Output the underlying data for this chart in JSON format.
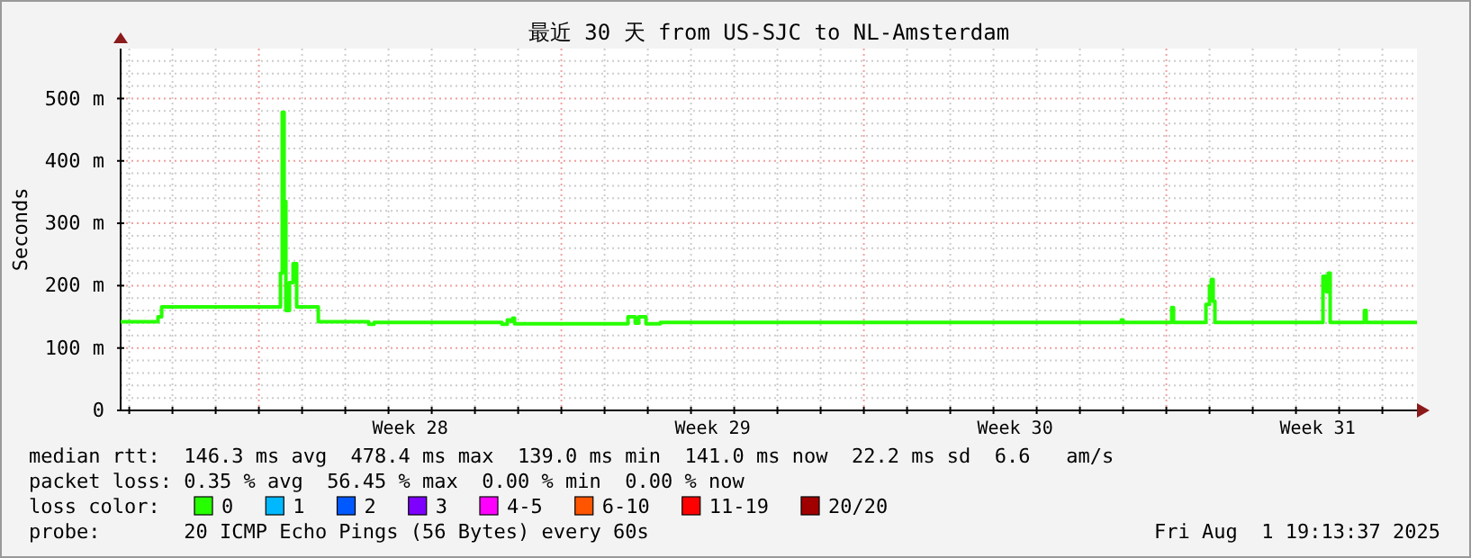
{
  "chart_data": {
    "type": "line",
    "title": "最近 30 天 from US-SJC to NL-Amsterdam",
    "ylabel": "Seconds",
    "xlim": [
      "2025-07-02T19:13",
      "2025-08-01T19:13"
    ],
    "ylim": [
      0,
      580
    ],
    "yticks": [
      0,
      {
        "value": 20,
        "label": null
      },
      {
        "value": 40,
        "label": null
      },
      {
        "value": 60,
        "label": null
      },
      {
        "value": 80,
        "label": null
      },
      {
        "value": 100,
        "label": "100 m"
      },
      {
        "value": 120,
        "label": null
      },
      {
        "value": 140,
        "label": null
      },
      {
        "value": 160,
        "label": null
      },
      {
        "value": 180,
        "label": null
      },
      {
        "value": 200,
        "label": "200 m"
      },
      {
        "value": 220,
        "label": null
      },
      {
        "value": 240,
        "label": null
      },
      {
        "value": 260,
        "label": null
      },
      {
        "value": 280,
        "label": null
      },
      {
        "value": 300,
        "label": "300 m"
      },
      {
        "value": 320,
        "label": null
      },
      {
        "value": 340,
        "label": null
      },
      {
        "value": 360,
        "label": null
      },
      {
        "value": 380,
        "label": null
      },
      {
        "value": 400,
        "label": "400 m"
      },
      {
        "value": 420,
        "label": null
      },
      {
        "value": 440,
        "label": null
      },
      {
        "value": 460,
        "label": null
      },
      {
        "value": 480,
        "label": null
      },
      {
        "value": 500,
        "label": "500 m"
      },
      {
        "value": 520,
        "label": null
      },
      {
        "value": 540,
        "label": null
      },
      {
        "value": 560,
        "label": null
      }
    ],
    "xticks": [
      {
        "value": "2025-07-03",
        "label": null
      },
      {
        "value": "2025-07-04",
        "label": null
      },
      {
        "value": "2025-07-05",
        "label": null
      },
      {
        "value": "2025-07-06",
        "label": null
      },
      {
        "value": "2025-07-07",
        "label": null
      },
      {
        "value": "2025-07-08",
        "label": null
      },
      {
        "value": "2025-07-09",
        "label": null
      },
      {
        "value": "2025-07-09T12:00",
        "label": "Week 28"
      },
      {
        "value": "2025-07-10",
        "label": null
      },
      {
        "value": "2025-07-11",
        "label": null
      },
      {
        "value": "2025-07-12",
        "label": null
      },
      {
        "value": "2025-07-13",
        "label": null
      },
      {
        "value": "2025-07-14",
        "label": null
      },
      {
        "value": "2025-07-15",
        "label": null
      },
      {
        "value": "2025-07-16",
        "label": null
      },
      {
        "value": "2025-07-16T12:00",
        "label": "Week 29"
      },
      {
        "value": "2025-07-17",
        "label": null
      },
      {
        "value": "2025-07-18",
        "label": null
      },
      {
        "value": "2025-07-19",
        "label": null
      },
      {
        "value": "2025-07-20",
        "label": null
      },
      {
        "value": "2025-07-21",
        "label": null
      },
      {
        "value": "2025-07-22",
        "label": null
      },
      {
        "value": "2025-07-23",
        "label": null
      },
      {
        "value": "2025-07-23T12:00",
        "label": "Week 30"
      },
      {
        "value": "2025-07-24",
        "label": null
      },
      {
        "value": "2025-07-25",
        "label": null
      },
      {
        "value": "2025-07-26",
        "label": null
      },
      {
        "value": "2025-07-27",
        "label": null
      },
      {
        "value": "2025-07-28",
        "label": null
      },
      {
        "value": "2025-07-29",
        "label": null
      },
      {
        "value": "2025-07-30",
        "label": null
      },
      {
        "value": "2025-07-30T12:00",
        "label": "Week 31"
      },
      {
        "value": "2025-07-31",
        "label": null
      },
      {
        "value": "2025-08-01",
        "label": null
      }
    ],
    "grid": true,
    "legend": "bottom",
    "legend_title": "loss color:",
    "line_style": "solid",
    "marker": "none",
    "series": [
      {
        "name": "0",
        "color": "#26ff00",
        "x": [
          "2025-07-02T19:13",
          "2025-07-03T15:00",
          "2025-07-03T16:00",
          "2025-07-03T18:00",
          "2025-07-06T11:00",
          "2025-07-06T12:00",
          "2025-07-06T13:00",
          "2025-07-06T14:00",
          "2025-07-06T15:00",
          "2025-07-06T17:00",
          "2025-07-06T19:00",
          "2025-07-06T21:00",
          "2025-07-07T08:00",
          "2025-07-07T09:00",
          "2025-07-08T12:00",
          "2025-07-08T13:00",
          "2025-07-08T16:00",
          "2025-07-11T14:00",
          "2025-07-11T15:00",
          "2025-07-11T18:00",
          "2025-07-11T20:00",
          "2025-07-11T21:00",
          "2025-07-11T22:00",
          "2025-07-14T12:00",
          "2025-07-14T13:00",
          "2025-07-14T16:00",
          "2025-07-14T17:00",
          "2025-07-14T19:00",
          "2025-07-14T22:00",
          "2025-07-14T23:00",
          "2025-07-15T06:00",
          "2025-07-15T07:00",
          "2025-07-25T22:00",
          "2025-07-25T23:00",
          "2025-07-26T00:00",
          "2025-07-27T02:00",
          "2025-07-27T03:00",
          "2025-07-27T04:00",
          "2025-07-27T21:00",
          "2025-07-27T22:00",
          "2025-07-28T00:00",
          "2025-07-28T01:00",
          "2025-07-28T02:00",
          "2025-07-28T03:00",
          "2025-07-30T14:00",
          "2025-07-30T15:00",
          "2025-07-30T17:00",
          "2025-07-30T18:00",
          "2025-07-30T19:00",
          "2025-07-31T13:00",
          "2025-07-31T14:00",
          "2025-07-31T15:00",
          "2025-08-01T19:13"
        ],
        "values": [
          142,
          142,
          150,
          166,
          166,
          220,
          478,
          335,
          160,
          205,
          235,
          166,
          166,
          142,
          142,
          138,
          141,
          141,
          138,
          145,
          143,
          148,
          139,
          139,
          150,
          150,
          140,
          150,
          150,
          139,
          139,
          141,
          141,
          145,
          141,
          141,
          165,
          141,
          141,
          170,
          200,
          210,
          175,
          141,
          141,
          215,
          190,
          220,
          141,
          141,
          160,
          141,
          141
        ]
      },
      {
        "name": "1",
        "color": "#00b8ff"
      },
      {
        "name": "2",
        "color": "#0059ff"
      },
      {
        "name": "3",
        "color": "#7e00ff"
      },
      {
        "name": "4-5",
        "color": "#ff00ff"
      },
      {
        "name": "6-10",
        "color": "#ff5500"
      },
      {
        "name": "11-19",
        "color": "#ff0000"
      },
      {
        "name": "20/20",
        "color": "#a10000"
      }
    ],
    "annotations": [
      "median rtt:  146.3 ms avg  478.4 ms max  139.0 ms min  141.0 ms now  22.2 ms sd  6.6   am/s",
      "packet loss: 0.35 % avg  56.45 % max  0.00 % min  0.00 % now",
      "probe:       20 ICMP Echo Pings (56 Bytes) every 60s",
      "Fri Aug  1 19:13:37 2025"
    ]
  }
}
